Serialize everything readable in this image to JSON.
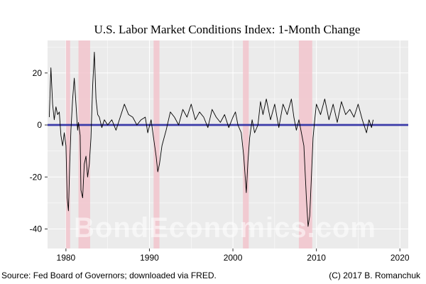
{
  "chart_data": {
    "type": "line",
    "title": "U.S. Labor Market Conditions Index: 1-Month Change",
    "xlabel": "",
    "ylabel": "",
    "xlim": [
      1977.8,
      2021.0
    ],
    "ylim": [
      -47.5,
      32.5
    ],
    "x_ticks": [
      1980,
      1990,
      2000,
      2010,
      2020
    ],
    "y_ticks": [
      -40,
      -20,
      0,
      20
    ],
    "x_tick_labels": [
      "1980",
      "1990",
      "2000",
      "2010",
      "2020"
    ],
    "y_tick_labels": [
      "-40",
      "-20",
      "0",
      "20"
    ],
    "recessions": [
      {
        "start": 1980.0,
        "end": 1980.5
      },
      {
        "start": 1981.5,
        "end": 1982.9
      },
      {
        "start": 1990.5,
        "end": 1991.2
      },
      {
        "start": 2001.2,
        "end": 2001.9
      },
      {
        "start": 2007.9,
        "end": 2009.5
      }
    ],
    "reference_line": {
      "y": 0,
      "color": "#3a3aa8"
    },
    "series": [
      {
        "name": "1-Month Change",
        "color": "#000000",
        "x": [
          1978.0,
          1978.2,
          1978.4,
          1978.6,
          1978.8,
          1979.0,
          1979.2,
          1979.4,
          1979.6,
          1979.8,
          1980.0,
          1980.15,
          1980.3,
          1980.45,
          1980.6,
          1980.8,
          1981.0,
          1981.2,
          1981.4,
          1981.5,
          1981.7,
          1981.8,
          1982.0,
          1982.2,
          1982.4,
          1982.6,
          1982.8,
          1983.0,
          1983.2,
          1983.4,
          1983.6,
          1983.8,
          1984.0,
          1984.3,
          1984.6,
          1985.0,
          1985.5,
          1986.0,
          1986.5,
          1987.0,
          1987.5,
          1988.0,
          1988.5,
          1989.0,
          1989.5,
          1989.8,
          1990.2,
          1990.5,
          1990.8,
          1991.0,
          1991.2,
          1991.5,
          1992.0,
          1992.5,
          1993.0,
          1993.5,
          1994.0,
          1994.5,
          1995.0,
          1995.5,
          1996.0,
          1996.5,
          1997.0,
          1997.5,
          1998.0,
          1998.5,
          1999.0,
          1999.5,
          2000.0,
          2000.3,
          2000.6,
          2001.0,
          2001.3,
          2001.6,
          2001.8,
          2002.0,
          2002.3,
          2002.6,
          2003.0,
          2003.3,
          2003.6,
          2004.0,
          2004.5,
          2005.0,
          2005.5,
          2006.0,
          2006.5,
          2007.0,
          2007.3,
          2007.6,
          2007.9,
          2008.2,
          2008.5,
          2008.8,
          2009.0,
          2009.2,
          2009.4,
          2009.6,
          2009.8,
          2010.0,
          2010.5,
          2011.0,
          2011.5,
          2012.0,
          2012.5,
          2013.0,
          2013.5,
          2014.0,
          2014.5,
          2015.0,
          2015.5,
          2016.0,
          2016.3,
          2016.6,
          2016.8
        ],
        "values": [
          3,
          22,
          8,
          2,
          7,
          4,
          5,
          -4,
          -8,
          -3,
          -8,
          -28,
          -33,
          -15,
          -2,
          10,
          18,
          8,
          -2,
          1,
          -4,
          -25,
          -28,
          -15,
          -12,
          -20,
          -15,
          -5,
          15,
          28,
          10,
          4,
          3,
          -1,
          2,
          0,
          2,
          -2,
          3,
          8,
          4,
          3,
          0,
          2,
          3,
          -3,
          2,
          -5,
          -12,
          -18,
          -15,
          -8,
          -2,
          5,
          3,
          0,
          6,
          3,
          8,
          2,
          5,
          3,
          -1,
          6,
          3,
          1,
          4,
          -1,
          3,
          5,
          0,
          -3,
          -12,
          -26,
          -14,
          -5,
          2,
          -3,
          0,
          9,
          4,
          10,
          2,
          8,
          -1,
          8,
          4,
          10,
          3,
          -2,
          2,
          -3,
          -8,
          -28,
          -39,
          -35,
          -20,
          -5,
          2,
          8,
          4,
          10,
          2,
          8,
          1,
          9,
          4,
          6,
          3,
          8,
          2,
          -3,
          2,
          -1,
          2
        ]
      }
    ],
    "source_note": "Source: Fed Board of Governors; downloaded via FRED.",
    "copyright_note": "(C) 2017 B. Romanchuk",
    "watermark": "BondEconomics.com"
  },
  "colors": {
    "panel_bg": "#ebebeb",
    "grid": "#ffffff",
    "recession": "#f2c4cc",
    "series": "#000000",
    "zero_line": "#3a3aa8"
  }
}
